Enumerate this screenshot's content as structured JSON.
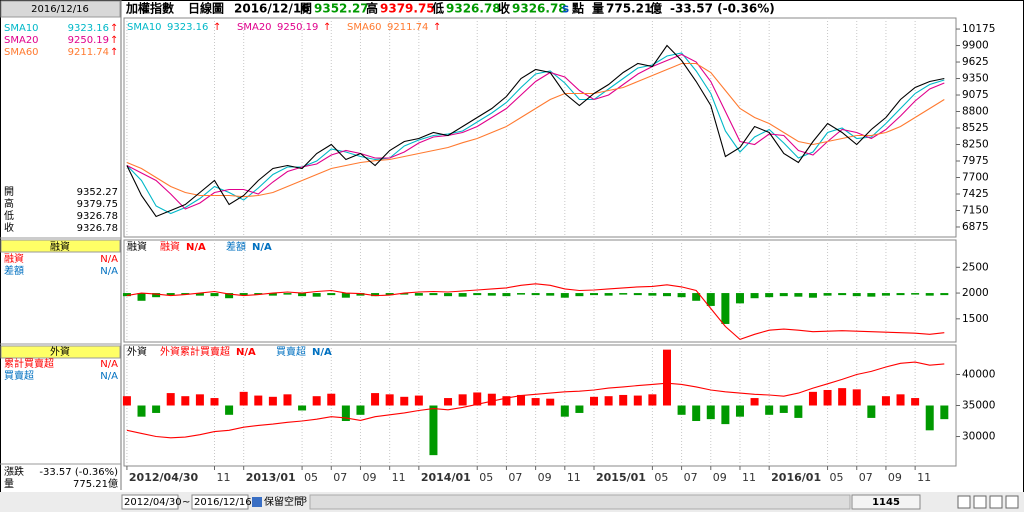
{
  "header": {
    "title": "加權指數",
    "period": "日線圖",
    "date": "2016/12/16",
    "quotes": [
      {
        "label": "開",
        "value": 9352.27,
        "color": "#009900"
      },
      {
        "label": "高",
        "value": 9379.75,
        "color": "#ff0000"
      },
      {
        "label": "低",
        "value": 9326.78,
        "color": "#009900"
      },
      {
        "label": "收",
        "value": 9326.78,
        "color": "#009900"
      }
    ],
    "flag": "s",
    "unit": "點",
    "volume": {
      "label": "量",
      "value": 775.21,
      "unit": "億"
    },
    "change": "-33.57 (-0.36%)",
    "change_label": "漲跌"
  },
  "toolbar": {
    "start": "2012/04/30",
    "sep": "~",
    "end": "2016/12/16",
    "reserve": "保留空間",
    "reserve_value": 3,
    "count": 1145
  },
  "chart_data": [
    {
      "type": "line",
      "color": "#000000",
      "x": [
        4,
        5,
        6,
        7,
        8,
        9,
        10,
        11,
        12,
        13,
        14,
        15,
        16,
        17,
        18,
        19,
        20,
        21,
        22,
        23,
        24,
        25,
        26,
        27,
        28,
        29,
        30,
        31,
        32,
        33,
        34,
        35,
        36,
        37,
        38,
        39,
        40,
        41,
        42,
        43,
        44,
        45,
        46,
        47,
        48,
        49,
        50,
        51,
        52,
        53,
        54,
        55,
        56,
        57,
        58,
        59,
        60
      ],
      "values": [
        7900,
        7400,
        7050,
        7150,
        7250,
        7450,
        7650,
        7250,
        7400,
        7650,
        7850,
        7900,
        7850,
        8100,
        8250,
        8000,
        8100,
        7900,
        8150,
        8300,
        8350,
        8450,
        8400,
        8550,
        8700,
        8850,
        9050,
        9350,
        9500,
        9450,
        9100,
        8900,
        9100,
        9250,
        9450,
        9600,
        9550,
        9900,
        9650,
        9300,
        8900,
        8050,
        8200,
        8550,
        8450,
        8100,
        7950,
        8300,
        8600,
        8450,
        8250,
        8500,
        8700,
        9000,
        9200,
        9300,
        9350
      ],
      "series": [
        {
          "name": "SMA10",
          "last": 9323.16,
          "trend": "↑",
          "color": "#00b8c8",
          "values": [
            7900,
            7650,
            7225,
            7100,
            7200,
            7350,
            7550,
            7450,
            7325,
            7525,
            7750,
            7875,
            7875,
            7975,
            8175,
            8125,
            8050,
            8000,
            8025,
            8225,
            8325,
            8400,
            8425,
            8475,
            8625,
            8775,
            8950,
            9200,
            9425,
            9475,
            9275,
            9000,
            9000,
            9175,
            9350,
            9525,
            9575,
            9725,
            9775,
            9475,
            9100,
            8475,
            8125,
            8375,
            8500,
            8275,
            8025,
            8125,
            8450,
            8525,
            8350,
            8375,
            8600,
            8850,
            9100,
            9250,
            9325
          ]
        },
        {
          "name": "SMA20",
          "last": 9250.19,
          "trend": "↑",
          "color": "#e0008c",
          "values": [
            7900,
            7775,
            7650,
            7425,
            7175,
            7275,
            7450,
            7500,
            7500,
            7425,
            7625,
            7800,
            7875,
            7925,
            8075,
            8150,
            8100,
            8025,
            8025,
            8125,
            8275,
            8375,
            8400,
            8450,
            8550,
            8700,
            8850,
            9075,
            9300,
            9450,
            9375,
            9150,
            9000,
            9075,
            9250,
            9425,
            9550,
            9650,
            9750,
            9625,
            9300,
            8800,
            8300,
            8250,
            8425,
            8400,
            8150,
            8075,
            8300,
            8500,
            8450,
            8350,
            8500,
            8725,
            8975,
            9175,
            9275
          ]
        },
        {
          "name": "SMA60",
          "last": 9211.74,
          "trend": "↑",
          "color": "#ff7a30",
          "values": [
            7950,
            7850,
            7700,
            7550,
            7450,
            7400,
            7400,
            7400,
            7380,
            7400,
            7450,
            7550,
            7650,
            7750,
            7850,
            7900,
            7950,
            7980,
            8000,
            8050,
            8100,
            8150,
            8200,
            8280,
            8350,
            8450,
            8550,
            8700,
            8850,
            9000,
            9100,
            9100,
            9100,
            9150,
            9200,
            9300,
            9400,
            9500,
            9600,
            9600,
            9450,
            9150,
            8850,
            8700,
            8600,
            8450,
            8300,
            8250,
            8300,
            8350,
            8400,
            8400,
            8450,
            8550,
            8700,
            8850,
            9000
          ]
        }
      ],
      "trend_color": "#ff0000",
      "xlim": [
        3.8,
        60.8
      ],
      "ylim": [
        6708,
        10359
      ],
      "yticks": [
        10175,
        9900,
        9625,
        9350,
        9075,
        8800,
        8525,
        8250,
        7975,
        7700,
        7425,
        7150,
        6875
      ]
    },
    {
      "type": "combo",
      "title": "融資",
      "x": [
        4,
        5,
        6,
        7,
        8,
        9,
        10,
        11,
        12,
        13,
        14,
        15,
        16,
        17,
        18,
        19,
        20,
        21,
        22,
        23,
        24,
        25,
        26,
        27,
        28,
        29,
        30,
        31,
        32,
        33,
        34,
        35,
        36,
        37,
        38,
        39,
        40,
        41,
        42,
        43,
        44,
        45,
        46,
        47,
        48,
        49,
        50,
        51,
        52,
        53,
        54,
        55,
        56,
        57,
        58,
        59,
        60
      ],
      "series": [
        {
          "name": "融資",
          "reading": "N/A",
          "type": "line",
          "color": "#ff0000",
          "text_color": "#ff0000",
          "values": [
            1950,
            2000,
            1980,
            1950,
            1970,
            2000,
            2030,
            1980,
            1950,
            1970,
            2000,
            2020,
            2000,
            2030,
            2050,
            2000,
            1990,
            1950,
            1960,
            2000,
            2020,
            2030,
            2020,
            2040,
            2060,
            2080,
            2100,
            2150,
            2180,
            2150,
            2080,
            2050,
            2060,
            2080,
            2100,
            2120,
            2130,
            2160,
            2120,
            2050,
            1700,
            1350,
            1100,
            1200,
            1280,
            1300,
            1280,
            1250,
            1260,
            1270,
            1260,
            1250,
            1240,
            1230,
            1220,
            1200,
            1230
          ]
        },
        {
          "name": "差額",
          "reading": "N/A",
          "type": "bar",
          "axis": "y2",
          "color": "#009900",
          "up_color": "#ff0000",
          "text_color": "#0070c0",
          "values": [
            -60,
            -150,
            -80,
            -40,
            -30,
            -50,
            -60,
            -100,
            -40,
            -30,
            -50,
            -30,
            -60,
            -70,
            -40,
            -90,
            -50,
            -60,
            -40,
            -30,
            -50,
            -40,
            -60,
            -70,
            -40,
            -50,
            -60,
            -30,
            -40,
            -50,
            -90,
            -60,
            -40,
            -50,
            -30,
            -40,
            -50,
            -60,
            -80,
            -150,
            -250,
            -600,
            -200,
            -100,
            -80,
            -60,
            -70,
            -90,
            -50,
            -40,
            -60,
            -70,
            -50,
            -40,
            -30,
            -50,
            -40
          ]
        }
      ],
      "xlim": [
        3.8,
        60.8
      ],
      "ylim": [
        1050,
        3030
      ],
      "yticks": [
        2500,
        2000,
        1500
      ],
      "y2lim": [
        -950,
        1030
      ]
    },
    {
      "type": "combo",
      "title": "外資",
      "x": [
        4,
        5,
        6,
        7,
        8,
        9,
        10,
        11,
        12,
        13,
        14,
        15,
        16,
        17,
        18,
        19,
        20,
        21,
        22,
        23,
        24,
        25,
        26,
        27,
        28,
        29,
        30,
        31,
        32,
        33,
        34,
        35,
        36,
        37,
        38,
        39,
        40,
        41,
        42,
        43,
        44,
        45,
        46,
        47,
        48,
        49,
        50,
        51,
        52,
        53,
        54,
        55,
        56,
        57,
        58,
        59,
        60
      ],
      "series": [
        {
          "name": "外資累計買賣超",
          "short_name": "累計買賣超",
          "reading": "N/A",
          "type": "line",
          "color": "#ff0000",
          "text_color": "#ff0000",
          "values": [
            31000,
            30500,
            30000,
            29800,
            29900,
            30300,
            30800,
            31000,
            31500,
            31800,
            32000,
            32300,
            32500,
            32800,
            33200,
            33000,
            32600,
            33200,
            33500,
            33800,
            34200,
            34500,
            34300,
            34700,
            35200,
            35700,
            36200,
            36600,
            36800,
            37000,
            37200,
            37300,
            37500,
            37800,
            38000,
            38200,
            38400,
            38600,
            38400,
            38000,
            37500,
            37200,
            37000,
            36800,
            36700,
            36500,
            37000,
            37800,
            38500,
            39200,
            40000,
            40500,
            41200,
            41800,
            42000,
            41500,
            41700
          ]
        },
        {
          "name": "買賣超",
          "reading": "N/A",
          "type": "bar",
          "axis": "y2",
          "color": "#009900",
          "up_color": "#ff0000",
          "text_color": "#0070c0",
          "values": [
            1500,
            -1800,
            -1200,
            2000,
            1500,
            1800,
            1200,
            -1500,
            2200,
            1600,
            1400,
            1800,
            -800,
            1500,
            1900,
            -2500,
            -1500,
            2000,
            1800,
            1400,
            1600,
            -8000,
            1200,
            1800,
            2100,
            1900,
            1500,
            1700,
            1200,
            1100,
            -1800,
            -1200,
            1400,
            1500,
            1700,
            1600,
            1800,
            9000,
            -1500,
            -2500,
            -2200,
            -3000,
            -1800,
            1200,
            -1500,
            -1200,
            -2000,
            2200,
            2500,
            2800,
            2600,
            -2000,
            1500,
            1800,
            1200,
            -4000,
            -2200
          ]
        }
      ],
      "xlim": [
        3.8,
        60.8
      ],
      "ylim": [
        25250,
        44750
      ],
      "yticks": [
        40000,
        35000,
        30000
      ],
      "y2lim": [
        -9750,
        9750
      ],
      "xticks": [
        {
          "value": 4,
          "label": "2012/04/30"
        },
        {
          "value": 10,
          "label": "11"
        },
        {
          "value": 12,
          "label": "2013/01"
        },
        {
          "value": 16,
          "label": "05"
        },
        {
          "value": 18,
          "label": "07"
        },
        {
          "value": 20,
          "label": "09"
        },
        {
          "value": 22,
          "label": "11"
        },
        {
          "value": 24,
          "label": "2014/01"
        },
        {
          "value": 28,
          "label": "05"
        },
        {
          "value": 30,
          "label": "07"
        },
        {
          "value": 32,
          "label": "09"
        },
        {
          "value": 34,
          "label": "11"
        },
        {
          "value": 36,
          "label": "2015/01"
        },
        {
          "value": 40,
          "label": "05"
        },
        {
          "value": 42,
          "label": "07"
        },
        {
          "value": 44,
          "label": "09"
        },
        {
          "value": 46,
          "label": "11"
        },
        {
          "value": 48,
          "label": "2016/01"
        },
        {
          "value": 52,
          "label": "05"
        },
        {
          "value": 54,
          "label": "07"
        },
        {
          "value": 56,
          "label": "09"
        },
        {
          "value": 58,
          "label": "11"
        }
      ]
    }
  ]
}
